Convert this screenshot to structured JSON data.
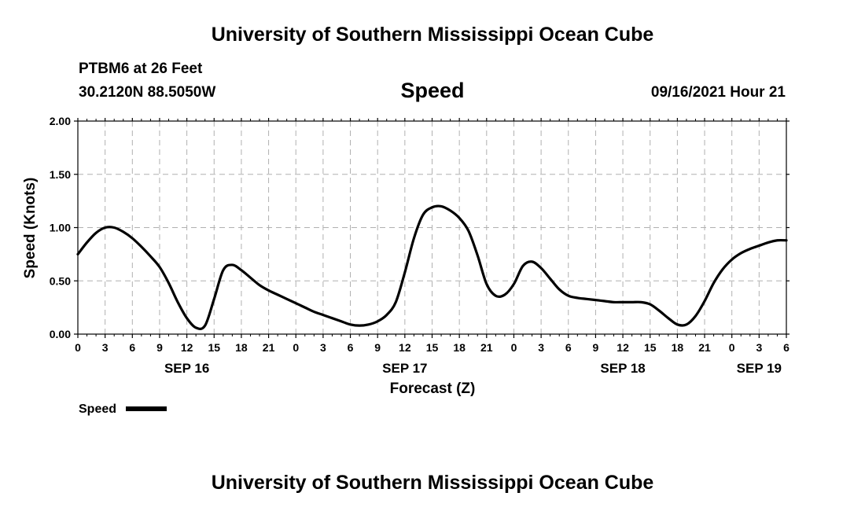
{
  "header": {
    "title": "University of Southern Mississippi Ocean Cube",
    "station": "PTBM6 at 26 Feet",
    "coords": "30.2120N  88.5050W",
    "variable": "Speed",
    "datetime": "09/16/2021 Hour 21"
  },
  "footer": {
    "title": "University of Southern Mississippi Ocean Cube"
  },
  "chart_data": {
    "type": "line",
    "title": "Speed",
    "xlabel": "Forecast (Z)",
    "ylabel": "Speed (Knots)",
    "ylim": [
      0,
      2
    ],
    "yticks": [
      "0.00",
      "0.50",
      "1.00",
      "1.50",
      "2.00"
    ],
    "ytick_values": [
      0,
      0.5,
      1.0,
      1.5,
      2.0
    ],
    "xlim_hours": [
      0,
      78
    ],
    "xtick_labels": [
      "0",
      "3",
      "6",
      "9",
      "12",
      "15",
      "18",
      "21",
      "0",
      "3",
      "6",
      "9",
      "12",
      "15",
      "18",
      "21",
      "0",
      "3",
      "6",
      "9",
      "12",
      "15",
      "18",
      "21",
      "0",
      "3",
      "6"
    ],
    "day_labels": [
      {
        "hour": 12,
        "label": "SEP 16"
      },
      {
        "hour": 36,
        "label": "SEP 17"
      },
      {
        "hour": 60,
        "label": "SEP 18"
      },
      {
        "hour": 75,
        "label": "SEP 19"
      }
    ],
    "grid": true,
    "series": [
      {
        "name": "Speed",
        "color": "#000000",
        "x": [
          0,
          1,
          2,
          3,
          4,
          5,
          6,
          7,
          8,
          9,
          10,
          11,
          12,
          13,
          14,
          15,
          16,
          17,
          18,
          19,
          20,
          21,
          22,
          23,
          24,
          25,
          26,
          27,
          28,
          29,
          30,
          31,
          32,
          33,
          34,
          35,
          36,
          37,
          38,
          39,
          40,
          41,
          42,
          43,
          44,
          45,
          46,
          47,
          48,
          49,
          50,
          51,
          52,
          53,
          54,
          55,
          56,
          57,
          58,
          59,
          60,
          61,
          62,
          63,
          64,
          65,
          66,
          67,
          68,
          69,
          70,
          71,
          72,
          73,
          74,
          75,
          76,
          77,
          78
        ],
        "values": [
          0.75,
          0.86,
          0.95,
          1.0,
          1.0,
          0.96,
          0.9,
          0.82,
          0.73,
          0.63,
          0.48,
          0.3,
          0.15,
          0.06,
          0.08,
          0.33,
          0.6,
          0.65,
          0.6,
          0.53,
          0.46,
          0.41,
          0.37,
          0.33,
          0.29,
          0.25,
          0.21,
          0.18,
          0.15,
          0.12,
          0.09,
          0.08,
          0.09,
          0.12,
          0.18,
          0.3,
          0.58,
          0.9,
          1.12,
          1.19,
          1.2,
          1.16,
          1.09,
          0.97,
          0.74,
          0.47,
          0.36,
          0.37,
          0.47,
          0.64,
          0.68,
          0.62,
          0.52,
          0.42,
          0.36,
          0.34,
          0.33,
          0.32,
          0.31,
          0.3,
          0.3,
          0.3,
          0.3,
          0.28,
          0.22,
          0.15,
          0.09,
          0.09,
          0.17,
          0.31,
          0.48,
          0.61,
          0.7,
          0.76,
          0.8,
          0.83,
          0.86,
          0.88,
          0.88
        ]
      }
    ],
    "legend": {
      "label": "Speed",
      "placement": "bottom-left"
    }
  }
}
